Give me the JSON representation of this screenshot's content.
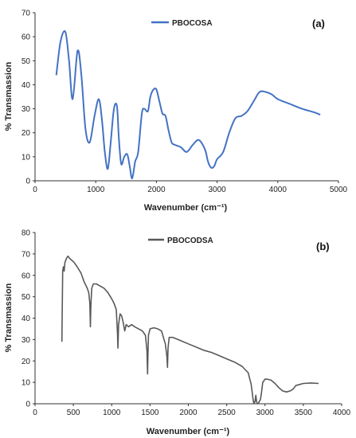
{
  "chart_data": [
    {
      "type": "line",
      "panel_label": "(a)",
      "xlabel": "Wavenumber (cm⁻¹)",
      "ylabel": "% Transmassion",
      "xlim": [
        0,
        5000
      ],
      "ylim": [
        0,
        70
      ],
      "xticks": [
        0,
        1000,
        2000,
        3000,
        4000,
        5000
      ],
      "yticks": [
        0,
        10,
        20,
        30,
        40,
        50,
        60,
        70
      ],
      "grid": false,
      "legend_position": "top-center",
      "color": "#4472C4",
      "series": [
        {
          "name": "PBOCOSA",
          "x": [
            350,
            420,
            500,
            560,
            620,
            700,
            760,
            830,
            900,
            980,
            1050,
            1100,
            1150,
            1200,
            1250,
            1300,
            1350,
            1380,
            1420,
            1470,
            1520,
            1560,
            1600,
            1650,
            1700,
            1760,
            1800,
            1860,
            1900,
            1950,
            2000,
            2050,
            2100,
            2150,
            2200,
            2250,
            2300,
            2400,
            2500,
            2600,
            2700,
            2800,
            2850,
            2900,
            2950,
            3000,
            3100,
            3200,
            3300,
            3400,
            3500,
            3600,
            3700,
            3800,
            3900,
            4000,
            4200,
            4400,
            4600,
            4700
          ],
          "y": [
            44,
            58,
            62,
            50,
            34,
            54,
            45,
            22,
            16,
            27,
            34,
            26,
            12,
            5,
            17,
            30,
            31,
            18,
            7,
            10,
            11,
            6,
            1,
            8,
            12,
            28,
            30,
            29,
            35,
            38,
            38,
            33,
            28,
            27,
            21,
            16,
            15,
            14,
            12,
            15,
            17,
            13,
            8,
            5.5,
            6,
            9,
            12,
            20,
            26,
            27,
            29,
            33,
            37,
            37,
            36,
            34,
            32,
            30,
            28.5,
            27.5
          ]
        }
      ]
    },
    {
      "type": "line",
      "panel_label": "(b)",
      "xlabel": "Wavenumber (cm⁻¹)",
      "ylabel": "% Transmassion",
      "xlim": [
        0,
        4000
      ],
      "ylim": [
        0,
        80
      ],
      "xticks": [
        0,
        500,
        1000,
        1500,
        2000,
        2500,
        3000,
        3500,
        4000
      ],
      "yticks": [
        0,
        10,
        20,
        30,
        40,
        50,
        60,
        70,
        80
      ],
      "grid": false,
      "legend_position": "top-center",
      "color": "#595959",
      "series": [
        {
          "name": "PBOCODSA",
          "x": [
            350,
            360,
            370,
            380,
            390,
            410,
            430,
            450,
            480,
            510,
            550,
            600,
            640,
            680,
            700,
            715,
            722,
            728,
            740,
            760,
            800,
            850,
            900,
            950,
            1000,
            1030,
            1060,
            1075,
            1082,
            1090,
            1110,
            1130,
            1150,
            1170,
            1190,
            1220,
            1260,
            1300,
            1350,
            1400,
            1440,
            1460,
            1468,
            1472,
            1480,
            1500,
            1550,
            1600,
            1650,
            1700,
            1720,
            1728,
            1735,
            1750,
            1800,
            1900,
            2000,
            2100,
            2200,
            2300,
            2400,
            2500,
            2600,
            2700,
            2780,
            2820,
            2845,
            2855,
            2870,
            2880,
            2890,
            2900,
            2910,
            2925,
            2940,
            2950,
            2970,
            3000,
            3030,
            3080,
            3130,
            3180,
            3230,
            3280,
            3330,
            3370,
            3400,
            3450,
            3500,
            3600,
            3700
          ],
          "y": [
            29,
            62,
            64,
            62,
            66,
            68,
            69,
            68,
            67,
            66,
            64,
            61,
            57,
            54,
            52,
            47,
            36,
            46,
            54,
            56,
            56,
            55,
            54,
            52,
            49,
            47,
            44,
            33,
            26,
            37,
            42,
            41,
            38,
            34,
            37,
            36,
            37,
            36,
            35,
            34,
            32,
            25,
            14,
            22,
            32,
            35,
            35.5,
            35,
            34,
            28,
            22,
            17,
            26,
            31,
            31,
            29.5,
            28,
            26.5,
            25,
            24,
            22.5,
            21,
            19.5,
            17.5,
            14.5,
            9,
            2,
            0,
            1,
            4,
            1,
            0,
            0,
            1,
            2,
            4,
            10,
            11.5,
            11.5,
            11,
            9.5,
            7.5,
            6,
            5.5,
            6,
            7,
            8.5,
            9,
            9.5,
            9.7,
            9.5
          ]
        }
      ]
    }
  ]
}
